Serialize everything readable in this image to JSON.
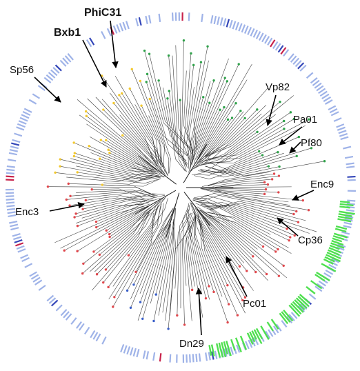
{
  "labels": {
    "phic31": "PhiC31",
    "bxb1": "Bxb1",
    "sp56": "Sp56",
    "vp82": "Vp82",
    "pa01": "Pa01",
    "pf80": "Pf80",
    "enc9": "Enc9",
    "enc3": "Enc3",
    "cp36": "Cp36",
    "pc01": "Pc01",
    "dn29": "Dn29"
  },
  "colors": {
    "background": "#ffffff",
    "branch": "#1a1a1a",
    "clade_yellow": "#f2c82e",
    "clade_green": "#2fa24a",
    "clade_red": "#e0474c",
    "clade_blue": "#3a5fc8",
    "ring_lightblue": "#9fb3e8",
    "ring_darkblue": "#3346b8",
    "ring_red": "#c8224a",
    "ring_green": "#4fe04f"
  }
}
